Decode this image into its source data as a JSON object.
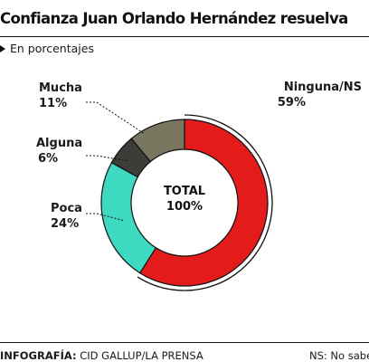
{
  "header": {
    "title": "Confianza Juan Orlando Hernández resuelva",
    "subtitle": "En porcentajes"
  },
  "chart_data": {
    "type": "pie",
    "style": "donut",
    "center_label": [
      "TOTAL",
      "100%"
    ],
    "slices": [
      {
        "name": "Ninguna/NS",
        "value": 59,
        "label": "59%",
        "color": "#e31b1b",
        "highlighted": true
      },
      {
        "name": "Poca",
        "value": 24,
        "label": "24%",
        "color": "#3dd9c1",
        "highlighted": false
      },
      {
        "name": "Alguna",
        "value": 6,
        "label": "6%",
        "color": "#3c3c38",
        "highlighted": false
      },
      {
        "name": "Mucha",
        "value": 11,
        "label": "11%",
        "color": "#7a7760",
        "highlighted": false
      }
    ]
  },
  "footer": {
    "credit_label": "INFOGRAFÍA:",
    "credit_value": "CID GALLUP/LA PRENSA",
    "note": "NS: No sabe"
  }
}
